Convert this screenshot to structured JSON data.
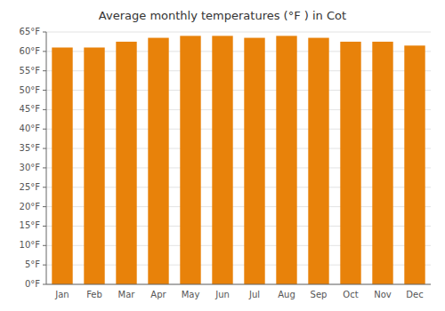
{
  "chart_data": {
    "type": "bar",
    "title": "Average monthly temperatures (°F ) in Cot",
    "categories": [
      "Jan",
      "Feb",
      "Mar",
      "Apr",
      "May",
      "Jun",
      "Jul",
      "Aug",
      "Sep",
      "Oct",
      "Nov",
      "Dec"
    ],
    "values": [
      61.0,
      61.0,
      62.5,
      63.5,
      64.0,
      64.0,
      63.5,
      64.0,
      63.5,
      62.5,
      62.5,
      61.5
    ],
    "color": "#E8820A",
    "ylim": [
      0,
      65
    ],
    "yticks": [
      {
        "value": 0,
        "label": "0°F"
      },
      {
        "value": 5,
        "label": "5°F"
      },
      {
        "value": 10,
        "label": "10°F"
      },
      {
        "value": 15,
        "label": "15°F"
      },
      {
        "value": 20,
        "label": "20°F"
      },
      {
        "value": 25,
        "label": "25°F"
      },
      {
        "value": 30,
        "label": "30°F"
      },
      {
        "value": 35,
        "label": "35°F"
      },
      {
        "value": 40,
        "label": "40°F"
      },
      {
        "value": 45,
        "label": "45°F"
      },
      {
        "value": 50,
        "label": "50°F"
      },
      {
        "value": 55,
        "label": "55°F"
      },
      {
        "value": 60,
        "label": "60°F"
      },
      {
        "value": 65,
        "label": "65°F"
      }
    ],
    "grid": true
  }
}
